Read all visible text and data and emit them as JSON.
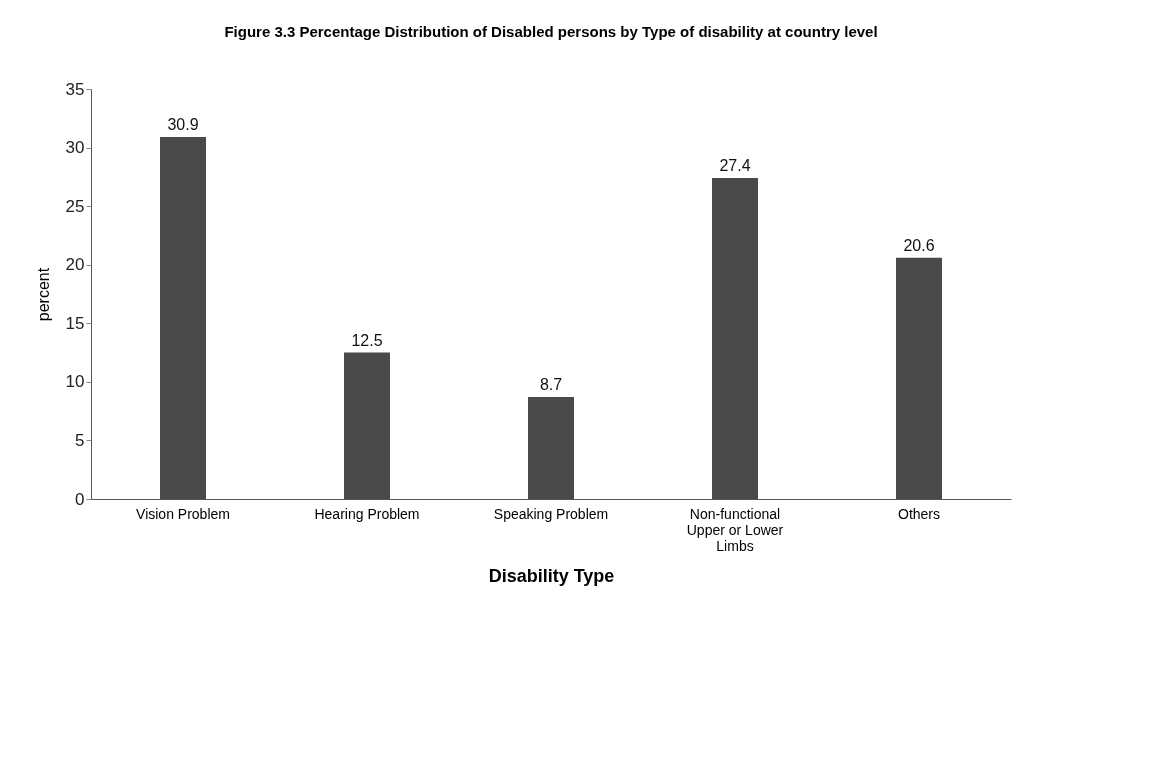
{
  "chart_data": {
    "type": "bar",
    "title": "Figure 3.3 Percentage Distribution of Disabled persons by Type of disability at country level",
    "xlabel": "Disability Type",
    "ylabel": "percent",
    "categories": [
      "Vision Problem",
      "Hearing Problem",
      "Speaking Problem",
      "Non-functional Upper or Lower Limbs",
      "Others"
    ],
    "values": [
      30.9,
      12.5,
      8.7,
      27.4,
      20.6
    ],
    "color": "#4a4a4a",
    "ylim": [
      0,
      35
    ],
    "yticks": [
      0,
      5,
      10,
      15,
      20,
      25,
      30,
      35
    ],
    "grid": false,
    "data_labels": true
  }
}
